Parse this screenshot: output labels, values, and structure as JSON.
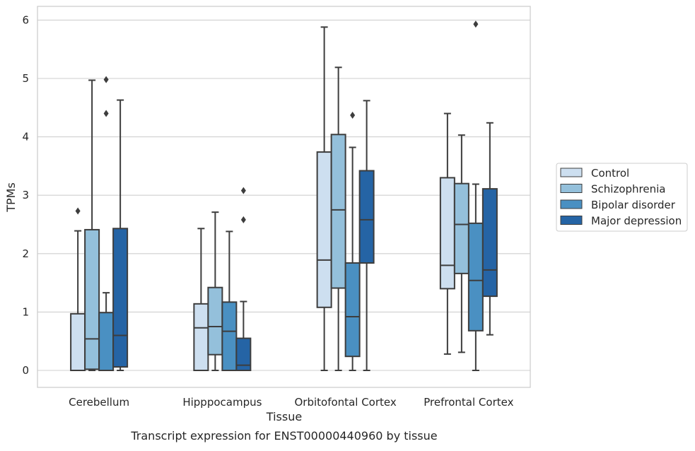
{
  "caption": "Transcript expression for ENST00000440960 by tissue",
  "chart_data": {
    "type": "box",
    "xlabel": "Tissue",
    "ylabel": "TPMs",
    "ylim": [
      -0.3,
      6.25
    ],
    "yticks": [
      0,
      1,
      2,
      3,
      4,
      5,
      6
    ],
    "grid": "horizontal",
    "legend_position": "right",
    "categories": [
      "Cerebellum",
      "Hipppocampus",
      "Orbitofontal Cortex",
      "Prefrontal Cortex"
    ],
    "series": [
      {
        "name": "Control",
        "color": "#cddff0",
        "boxes": [
          {
            "whisker_low": 0.0,
            "q1": 0.0,
            "median": 0.0,
            "q3": 0.97,
            "whisker_high": 2.39,
            "outliers": [
              2.73
            ]
          },
          {
            "whisker_low": 0.0,
            "q1": 0.0,
            "median": 0.73,
            "q3": 1.14,
            "whisker_high": 2.43,
            "outliers": []
          },
          {
            "whisker_low": 0.0,
            "q1": 1.08,
            "median": 1.89,
            "q3": 3.74,
            "whisker_high": 5.88,
            "outliers": []
          },
          {
            "whisker_low": 0.28,
            "q1": 1.4,
            "median": 1.8,
            "q3": 3.3,
            "whisker_high": 4.4,
            "outliers": []
          }
        ]
      },
      {
        "name": "Schizophrenia",
        "color": "#94c0db",
        "boxes": [
          {
            "whisker_low": 0.0,
            "q1": 0.02,
            "median": 0.54,
            "q3": 2.41,
            "whisker_high": 4.97,
            "outliers": []
          },
          {
            "whisker_low": 0.0,
            "q1": 0.27,
            "median": 0.75,
            "q3": 1.42,
            "whisker_high": 2.71,
            "outliers": []
          },
          {
            "whisker_low": 0.0,
            "q1": 1.41,
            "median": 2.75,
            "q3": 4.04,
            "whisker_high": 5.19,
            "outliers": []
          },
          {
            "whisker_low": 0.31,
            "q1": 1.66,
            "median": 2.5,
            "q3": 3.2,
            "whisker_high": 4.03,
            "outliers": []
          }
        ]
      },
      {
        "name": "Bipolar disorder",
        "color": "#4a90c2",
        "boxes": [
          {
            "whisker_low": 0.0,
            "q1": 0.0,
            "median": 0.0,
            "q3": 0.99,
            "whisker_high": 1.33,
            "outliers": [
              4.4,
              4.98
            ]
          },
          {
            "whisker_low": 0.0,
            "q1": 0.0,
            "median": 0.67,
            "q3": 1.17,
            "whisker_high": 2.38,
            "outliers": []
          },
          {
            "whisker_low": 0.0,
            "q1": 0.24,
            "median": 0.92,
            "q3": 1.84,
            "whisker_high": 3.82,
            "outliers": [
              4.37
            ]
          },
          {
            "whisker_low": 0.0,
            "q1": 0.68,
            "median": 1.54,
            "q3": 2.52,
            "whisker_high": 3.19,
            "outliers": [
              5.93
            ]
          }
        ]
      },
      {
        "name": "Major depression",
        "color": "#2564a5",
        "boxes": [
          {
            "whisker_low": 0.0,
            "q1": 0.06,
            "median": 0.6,
            "q3": 2.43,
            "whisker_high": 4.63,
            "outliers": []
          },
          {
            "whisker_low": 0.0,
            "q1": 0.0,
            "median": 0.09,
            "q3": 0.55,
            "whisker_high": 1.18,
            "outliers": [
              2.58,
              3.08
            ]
          },
          {
            "whisker_low": 0.0,
            "q1": 1.84,
            "median": 2.58,
            "q3": 3.42,
            "whisker_high": 4.62,
            "outliers": []
          },
          {
            "whisker_low": 0.61,
            "q1": 1.27,
            "median": 1.72,
            "q3": 3.11,
            "whisker_high": 4.24,
            "outliers": []
          }
        ]
      }
    ]
  }
}
